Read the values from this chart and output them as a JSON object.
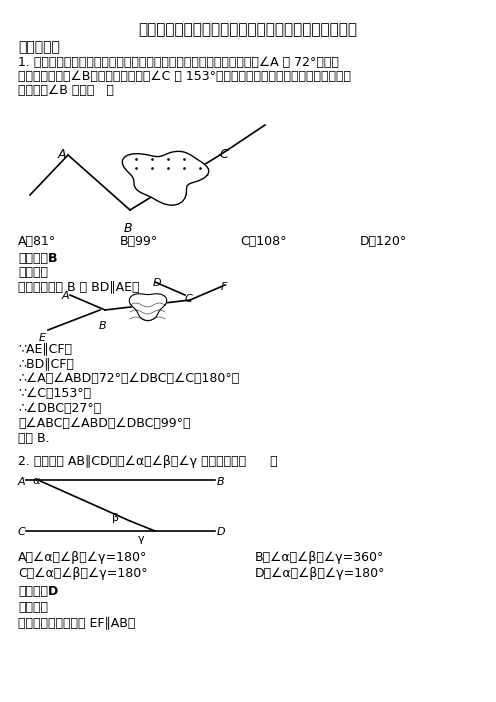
{
  "title": "（专题精选）初中数学相交线与平行线分类汇编及解析",
  "section1": "一、选择题",
  "q1_text_lines": [
    "1. 如图，一条公路修到湖边时，需拐弯绕湖而过，如果第一次拐弯处的∠A 是 72°，第二",
    "次拐弯处的角是∠B，第三次拐弯处的∠C 是 153°，这时道路恰好和第一次拐弯之前的道路",
    "平行，则∠B 等于（   ）"
  ],
  "q1_choices": [
    "A．81°",
    "B．99°",
    "C．108°",
    "D．120°"
  ],
  "q1_answer": "【答案】B",
  "q1_jiexi": "【解析】",
  "q1_explain": "试题解析：过 B 作 BD∥AE，",
  "proof_lines": [
    "∵AE∥CF，",
    "∴BD∥CF，",
    "∴∠A＝∠ABD＝72°，∠DBC＋∠C＝180°，",
    "∵∠C＝153°，",
    "∴∠DBC＝27°，",
    "则∠ABC＝∠ABD＋∠DBC＝99°，",
    "故选 B."
  ],
  "q2_text": "2. 如图，若 AB∥CD，则∠α、∠β、∠γ 之间关系是（      ）",
  "q2_choices": [
    "A．∠α＋∠β＋∠γ=180°",
    "B．∠α＋∠β－∠γ=360°",
    "C．∠α－∠β＋∠γ=180°",
    "D．∠α＋∠β－∠γ=180°"
  ],
  "q2_answer": "【答案】D",
  "q2_jiexi": "【解析】",
  "q2_explain": "试题解析：如图，作 EF∥AB，",
  "bg_color": "#ffffff"
}
